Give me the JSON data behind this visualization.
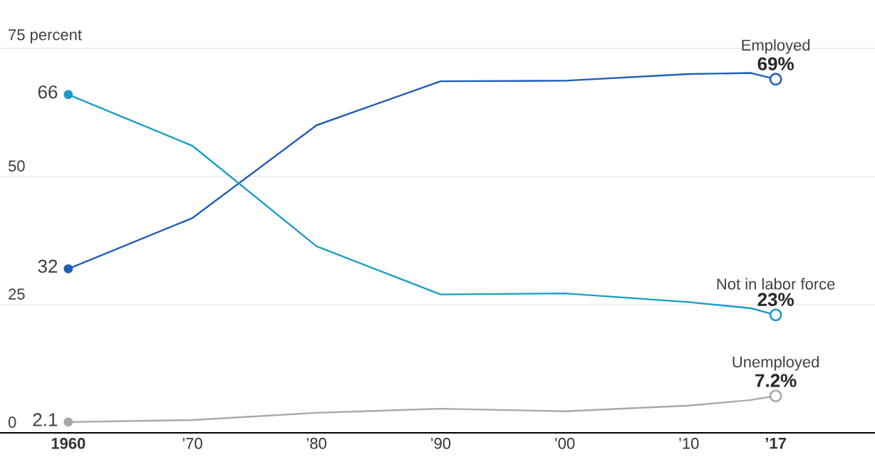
{
  "chart_data": {
    "type": "line",
    "x": [
      1960,
      1970,
      1980,
      1990,
      2000,
      2010,
      2015,
      2017
    ],
    "series": [
      {
        "name": "Employed",
        "color": "#1f5fb4",
        "values": [
          32,
          41.9,
          60,
          68.6,
          68.7,
          70,
          70.2,
          69
        ],
        "value_labels": [
          "32",
          null,
          null,
          null,
          null,
          null,
          null,
          "69%"
        ]
      },
      {
        "name": "Not in labor force",
        "color": "#1a9cc9",
        "values": [
          66,
          56,
          36.4,
          27,
          27.2,
          25.5,
          24.3,
          23
        ],
        "value_labels": [
          "66",
          null,
          null,
          null,
          null,
          null,
          null,
          "23%"
        ]
      },
      {
        "name": "Unemployed",
        "color": "#a8a8a8",
        "values": [
          2.1,
          2.5,
          3.9,
          4.7,
          4.2,
          5.3,
          6.4,
          7.2
        ],
        "value_labels": [
          "2.1",
          null,
          null,
          null,
          null,
          null,
          null,
          "7.2%"
        ]
      }
    ],
    "xlim": [
      1954.5,
      2025
    ],
    "ylim": [
      0,
      75
    ],
    "xticks": [
      {
        "value": 1960,
        "label": "1960"
      },
      {
        "value": 1970,
        "label": "’70"
      },
      {
        "value": 1980,
        "label": "’80"
      },
      {
        "value": 1990,
        "label": "’90"
      },
      {
        "value": 2000,
        "label": "’00"
      },
      {
        "value": 2010,
        "label": "’10"
      },
      {
        "value": 2017,
        "label": "’17"
      }
    ],
    "yticks": [
      0,
      25,
      50,
      {
        "value": 75,
        "label": "75 percent"
      }
    ],
    "grid": "y",
    "line_style": "solid"
  }
}
